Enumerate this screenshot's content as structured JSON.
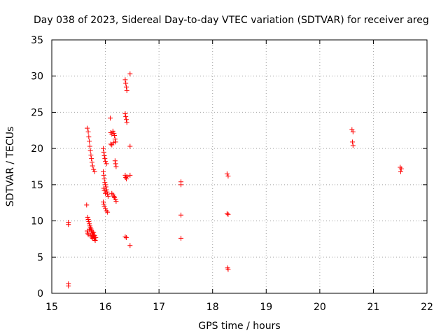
{
  "chart_data": {
    "type": "scatter",
    "title": "Day 038 of 2023, Sidereal Day-to-day VTEC variation (SDTVAR) for receiver areg",
    "xlabel": "GPS time / hours",
    "ylabel": "SDTVAR / TECUs",
    "xlim": [
      15,
      22
    ],
    "ylim": [
      0,
      35
    ],
    "xticks": [
      15,
      16,
      17,
      18,
      19,
      20,
      21,
      22
    ],
    "yticks": [
      0,
      5,
      10,
      15,
      20,
      25,
      30,
      35
    ],
    "xtick_labels": [
      "15",
      "16",
      "17",
      "18",
      "19",
      "20",
      "21",
      "22"
    ],
    "ytick_labels": [
      "0",
      "5",
      "10",
      "15",
      "20",
      "25",
      "30",
      "35"
    ],
    "grid": true,
    "marker": "+",
    "color": "#ff0000",
    "points": [
      [
        15.31,
        9.8
      ],
      [
        15.31,
        9.5
      ],
      [
        15.31,
        1.3
      ],
      [
        15.31,
        1.0
      ],
      [
        15.65,
        12.2
      ],
      [
        15.66,
        22.8
      ],
      [
        15.68,
        22.3
      ],
      [
        15.69,
        21.6
      ],
      [
        15.7,
        21.0
      ],
      [
        15.71,
        20.3
      ],
      [
        15.72,
        19.7
      ],
      [
        15.73,
        19.1
      ],
      [
        15.74,
        18.6
      ],
      [
        15.75,
        18.1
      ],
      [
        15.76,
        17.6
      ],
      [
        15.78,
        17.1
      ],
      [
        15.8,
        16.8
      ],
      [
        15.67,
        10.5
      ],
      [
        15.68,
        10.2
      ],
      [
        15.69,
        9.9
      ],
      [
        15.7,
        9.6
      ],
      [
        15.71,
        9.3
      ],
      [
        15.72,
        9.1
      ],
      [
        15.73,
        8.9
      ],
      [
        15.74,
        8.7
      ],
      [
        15.75,
        8.5
      ],
      [
        15.76,
        8.3
      ],
      [
        15.77,
        8.1
      ],
      [
        15.78,
        7.9
      ],
      [
        15.79,
        7.7
      ],
      [
        15.8,
        7.5
      ],
      [
        15.81,
        7.3
      ],
      [
        15.66,
        8.6
      ],
      [
        15.67,
        8.3
      ],
      [
        15.68,
        8.1
      ],
      [
        15.7,
        8.8
      ],
      [
        15.72,
        8.0
      ],
      [
        15.74,
        7.8
      ],
      [
        15.76,
        7.6
      ],
      [
        15.78,
        8.4
      ],
      [
        15.8,
        8.0
      ],
      [
        15.82,
        7.7
      ],
      [
        15.96,
        20.0
      ],
      [
        15.97,
        19.5
      ],
      [
        15.98,
        19.0
      ],
      [
        15.99,
        18.6
      ],
      [
        16.0,
        18.2
      ],
      [
        16.02,
        17.9
      ],
      [
        15.96,
        16.8
      ],
      [
        15.97,
        16.3
      ],
      [
        15.98,
        15.8
      ],
      [
        15.99,
        15.3
      ],
      [
        16.0,
        15.0
      ],
      [
        16.01,
        14.7
      ],
      [
        16.02,
        14.3
      ],
      [
        16.03,
        14.0
      ],
      [
        16.04,
        13.7
      ],
      [
        16.05,
        13.4
      ],
      [
        15.97,
        14.5
      ],
      [
        15.98,
        14.2
      ],
      [
        16.0,
        13.8
      ],
      [
        15.96,
        12.6
      ],
      [
        15.97,
        12.3
      ],
      [
        15.98,
        12.0
      ],
      [
        16.0,
        11.7
      ],
      [
        16.02,
        11.4
      ],
      [
        16.04,
        11.2
      ],
      [
        16.09,
        24.2
      ],
      [
        16.1,
        22.2
      ],
      [
        16.12,
        22.0
      ],
      [
        16.14,
        22.4
      ],
      [
        16.16,
        22.1
      ],
      [
        16.17,
        21.8
      ],
      [
        16.18,
        21.3
      ],
      [
        16.19,
        20.9
      ],
      [
        16.1,
        20.6
      ],
      [
        16.12,
        20.5
      ],
      [
        16.15,
        20.8
      ],
      [
        16.18,
        18.3
      ],
      [
        16.19,
        17.9
      ],
      [
        16.2,
        17.5
      ],
      [
        16.12,
        13.8
      ],
      [
        16.14,
        13.6
      ],
      [
        16.16,
        13.4
      ],
      [
        16.17,
        13.2
      ],
      [
        16.19,
        13.0
      ],
      [
        16.2,
        12.7
      ],
      [
        16.37,
        29.5
      ],
      [
        16.38,
        29.0
      ],
      [
        16.39,
        28.5
      ],
      [
        16.4,
        28.0
      ],
      [
        16.46,
        30.3
      ],
      [
        16.37,
        24.8
      ],
      [
        16.38,
        24.4
      ],
      [
        16.39,
        24.0
      ],
      [
        16.4,
        23.6
      ],
      [
        16.46,
        20.3
      ],
      [
        16.37,
        16.3
      ],
      [
        16.38,
        16.0
      ],
      [
        16.39,
        15.8
      ],
      [
        16.4,
        16.1
      ],
      [
        16.46,
        16.3
      ],
      [
        16.37,
        7.8
      ],
      [
        16.39,
        7.7
      ],
      [
        16.46,
        6.6
      ],
      [
        17.41,
        15.4
      ],
      [
        17.41,
        15.0
      ],
      [
        17.41,
        10.8
      ],
      [
        17.41,
        7.6
      ],
      [
        18.27,
        16.5
      ],
      [
        18.29,
        16.2
      ],
      [
        18.27,
        11.0
      ],
      [
        18.29,
        10.9
      ],
      [
        18.28,
        3.5
      ],
      [
        18.29,
        3.3
      ],
      [
        20.6,
        22.6
      ],
      [
        20.62,
        22.3
      ],
      [
        20.61,
        20.9
      ],
      [
        20.62,
        20.4
      ],
      [
        21.5,
        17.4
      ],
      [
        21.52,
        17.2
      ],
      [
        21.51,
        16.8
      ]
    ]
  }
}
